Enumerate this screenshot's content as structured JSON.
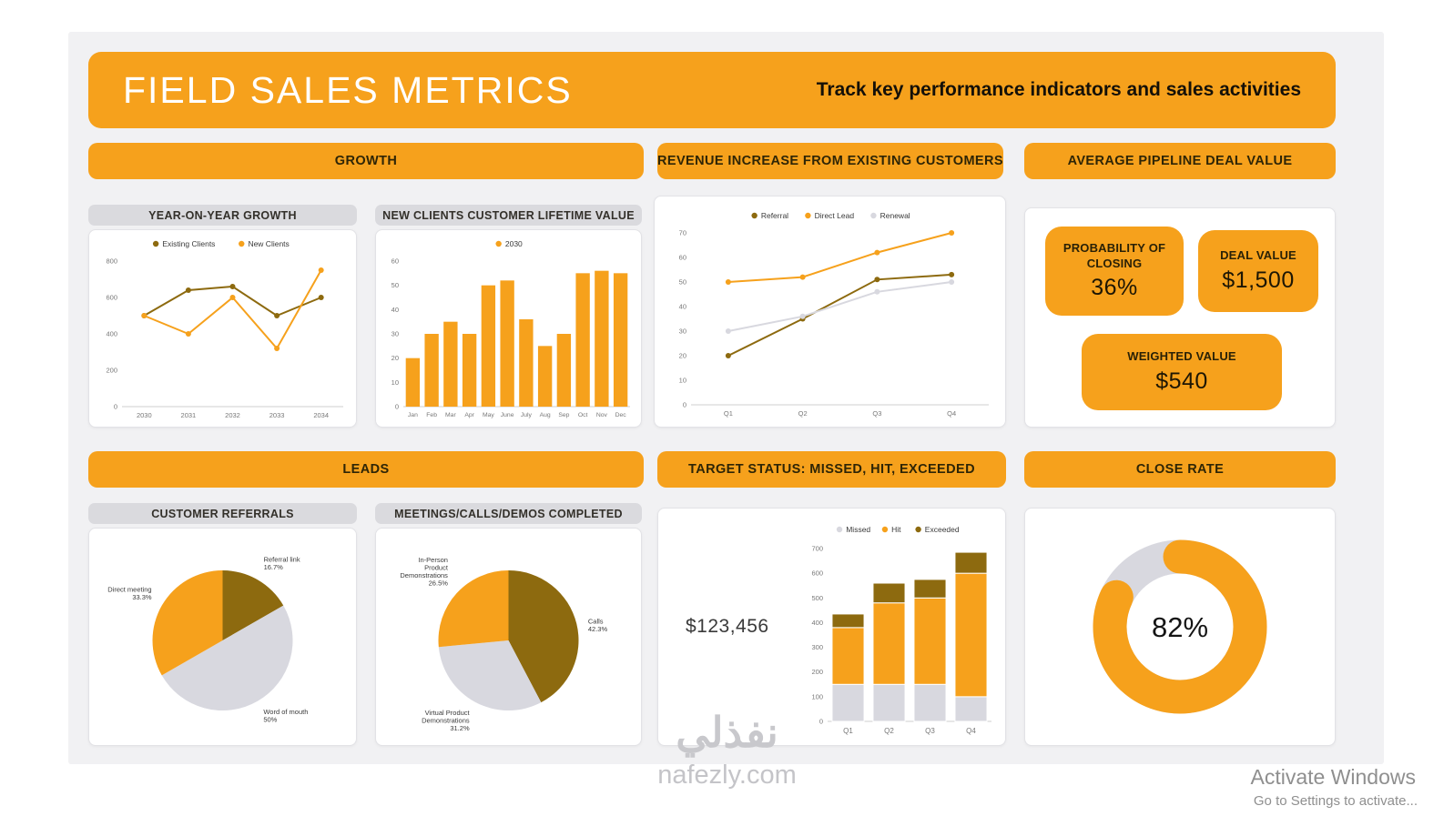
{
  "header": {
    "title": "FIELD SALES METRICS",
    "subtitle": "Track key performance indicators and sales activities"
  },
  "colors": {
    "orange": "#F6A11C",
    "dark": "#8D6A0F",
    "gray": "#D8D8DF",
    "panel_title_bg": "#DADADE",
    "dashboard_bg": "#F1F1F3"
  },
  "sections": {
    "growth": "GROWTH",
    "revenue": "REVENUE INCREASE FROM EXISTING CUSTOMERS",
    "pipeline": "AVERAGE PIPELINE DEAL VALUE",
    "leads": "LEADS",
    "target": "TARGET STATUS: MISSED, HIT, EXCEEDED",
    "close_rate": "CLOSE RATE"
  },
  "panels": {
    "yoy": "YEAR-ON-YEAR GROWTH",
    "clv": "NEW CLIENTS CUSTOMER LIFETIME VALUE",
    "referrals": "CUSTOMER REFERRALS",
    "meetings": "MEETINGS/CALLS/DEMOS COMPLETED"
  },
  "pipeline": {
    "probability_label": "PROBABILITY OF CLOSING",
    "probability_value": "36%",
    "deal_label": "DEAL VALUE",
    "deal_value": "$1,500",
    "weighted_label": "WEIGHTED VALUE",
    "weighted_value": "$540"
  },
  "target": {
    "value_label": "$123,456"
  },
  "watermark": {
    "arabic": "نفذلي",
    "site": "nafezly.com"
  },
  "activate": {
    "line1": "Activate Windows",
    "line2": "Go to Settings to activate..."
  },
  "chart_data": [
    {
      "id": "yoy",
      "type": "line",
      "title": "YEAR-ON-YEAR GROWTH",
      "categories": [
        "2030",
        "2031",
        "2032",
        "2033",
        "2034"
      ],
      "series": [
        {
          "name": "Existing Clients",
          "color": "dark",
          "values": [
            500,
            640,
            660,
            500,
            600
          ]
        },
        {
          "name": "New Clients",
          "color": "orange",
          "values": [
            500,
            400,
            600,
            320,
            750
          ]
        }
      ],
      "ylim": [
        0,
        800
      ],
      "yticks": [
        0,
        200,
        400,
        600,
        800
      ],
      "legend_position": "top",
      "grid": false
    },
    {
      "id": "clv",
      "type": "bar",
      "title": "NEW CLIENTS CUSTOMER LIFETIME VALUE",
      "categories": [
        "Jan",
        "Feb",
        "Mar",
        "Apr",
        "May",
        "June",
        "July",
        "Aug",
        "Sep",
        "Oct",
        "Nov",
        "Dec"
      ],
      "series": [
        {
          "name": "2030",
          "color": "orange",
          "values": [
            20,
            30,
            35,
            30,
            50,
            52,
            36,
            25,
            30,
            55,
            56,
            55
          ]
        }
      ],
      "ylim": [
        0,
        60
      ],
      "yticks": [
        0,
        10,
        20,
        30,
        40,
        50,
        60
      ],
      "legend_position": "top",
      "grid": false
    },
    {
      "id": "revenue",
      "type": "line",
      "title": "REVENUE INCREASE FROM EXISTING CUSTOMERS",
      "categories": [
        "Q1",
        "Q2",
        "Q3",
        "Q4"
      ],
      "series": [
        {
          "name": "Referral",
          "color": "dark",
          "values": [
            20,
            35,
            51,
            53
          ]
        },
        {
          "name": "Direct Lead",
          "color": "orange",
          "values": [
            50,
            52,
            62,
            70
          ]
        },
        {
          "name": "Renewal",
          "color": "gray",
          "values": [
            30,
            36,
            46,
            50
          ]
        }
      ],
      "ylim": [
        0,
        70
      ],
      "yticks": [
        0,
        10,
        20,
        30,
        40,
        50,
        60,
        70
      ],
      "legend_position": "top",
      "grid": false
    },
    {
      "id": "referrals",
      "type": "pie",
      "title": "CUSTOMER REFERRALS",
      "slices": [
        {
          "label": "Referral link",
          "label_lines": [
            "Referral link"
          ],
          "pct": 16.7,
          "pct_label": "16.7%",
          "color": "dark"
        },
        {
          "label": "Word of mouth",
          "label_lines": [
            "Word of mouth"
          ],
          "pct": 50,
          "pct_label": "50%",
          "color": "gray"
        },
        {
          "label": "Direct meeting",
          "label_lines": [
            "Direct meeting"
          ],
          "pct": 33.3,
          "pct_label": "33.3%",
          "color": "orange"
        }
      ]
    },
    {
      "id": "meetings",
      "type": "pie",
      "title": "MEETINGS/CALLS/DEMOS COMPLETED",
      "slices": [
        {
          "label": "Calls",
          "label_lines": [
            "Calls"
          ],
          "pct": 42.3,
          "pct_label": "42.3%",
          "color": "dark"
        },
        {
          "label": "Virtual Product Demonstrations",
          "label_lines": [
            "Virtual Product",
            "Demonstrations"
          ],
          "pct": 31.2,
          "pct_label": "31.2%",
          "color": "gray"
        },
        {
          "label": "In-Person Product Demonstrations",
          "label_lines": [
            "In-Person",
            "Product",
            "Demonstrations"
          ],
          "pct": 26.5,
          "pct_label": "26.5%",
          "color": "orange"
        }
      ]
    },
    {
      "id": "target",
      "type": "stacked-bar",
      "title": "TARGET STATUS: MISSED, HIT, EXCEEDED",
      "categories": [
        "Q1",
        "Q2",
        "Q3",
        "Q4"
      ],
      "series": [
        {
          "name": "Missed",
          "color": "gray",
          "values": [
            150,
            150,
            150,
            100
          ]
        },
        {
          "name": "Hit",
          "color": "orange",
          "values": [
            230,
            330,
            350,
            500
          ]
        },
        {
          "name": "Exceeded",
          "color": "dark",
          "values": [
            55,
            80,
            75,
            85
          ]
        }
      ],
      "ylim": [
        0,
        700
      ],
      "yticks": [
        0,
        100,
        200,
        300,
        400,
        500,
        600,
        700
      ],
      "legend_position": "top",
      "grid": false
    },
    {
      "id": "close",
      "type": "donut",
      "title": "CLOSE RATE",
      "value": 82,
      "label": "82%"
    }
  ]
}
